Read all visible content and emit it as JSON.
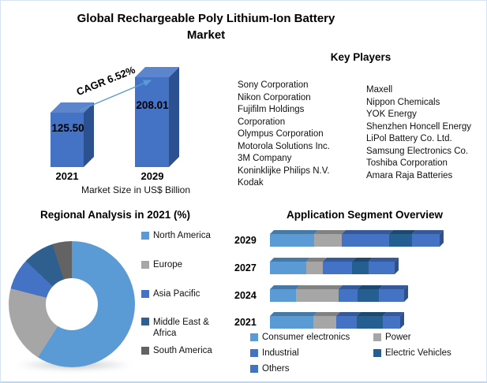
{
  "title": "Global Rechargeable Poly Lithium-Ion Battery Market",
  "market_chart": {
    "cagr_label": "CAGR 6.52%",
    "caption": "Market Size in US$ Billion",
    "chart_data": {
      "type": "bar",
      "categories": [
        "2021",
        "2029"
      ],
      "values": [
        125.5,
        208.01
      ],
      "value_labels": [
        "125.50",
        "208.01"
      ],
      "ylabel": "Market Size in US$ Billion",
      "cagr": "6.52%",
      "bar_color": "#4472C4",
      "bar_top_color": "#5D85CB",
      "bar_side_color": "#2C5191",
      "arrow_color": "#5B9BD5"
    }
  },
  "key_players": {
    "heading": "Key Players",
    "column1": [
      "Sony Corporation",
      "Nikon Corporation",
      "Fujifilm Holdings Corporation",
      "Olympus Corporation",
      "Motorola Solutions Inc.",
      "3M Company",
      "Koninklijke Philips N.V.",
      "Kodak"
    ],
    "column2": [
      "Maxell",
      "Nippon Chemicals",
      "YOK Energy",
      "Shenzhen Honcell Energy",
      "LiPol Battery Co. Ltd.",
      "Samsung Electronics Co.",
      "Toshiba Corporation",
      "Amara Raja Batteries"
    ]
  },
  "regional": {
    "heading": "Regional Analysis in 2021 (%)",
    "chart_data": {
      "type": "pie",
      "donut": true,
      "start_angle_deg": 0,
      "legend_position": "right",
      "labels": [
        "North America",
        "Europe",
        "Asia Pacific",
        "Middle East & Africa",
        "South America"
      ],
      "values": [
        59,
        20,
        8,
        8,
        5
      ],
      "colors": [
        "#5B9BD5",
        "#A6A6A6",
        "#4472C4",
        "#2E5F8F",
        "#636363"
      ]
    }
  },
  "application": {
    "heading": "Application Segment Overview",
    "chart_data": {
      "type": "bar",
      "orientation": "horizontal",
      "stacked": true,
      "grid": false,
      "categories": [
        "2029",
        "2027",
        "2024",
        "2021"
      ],
      "series": [
        {
          "name": "Consumer electronics",
          "color": "#5B9BD5",
          "values": [
            56,
            46,
            33,
            55
          ]
        },
        {
          "name": "Power",
          "color": "#A6A6A6",
          "values": [
            35,
            21,
            54,
            29
          ]
        },
        {
          "name": "Industrial",
          "color": "#4472C4",
          "values": [
            60,
            37,
            24,
            26
          ]
        },
        {
          "name": "Electric Vehicles",
          "color": "#255E91",
          "values": [
            29,
            21,
            27,
            33
          ]
        },
        {
          "name": "Others",
          "color": "#4472C4",
          "values": [
            35,
            33,
            32,
            22
          ]
        }
      ]
    }
  }
}
